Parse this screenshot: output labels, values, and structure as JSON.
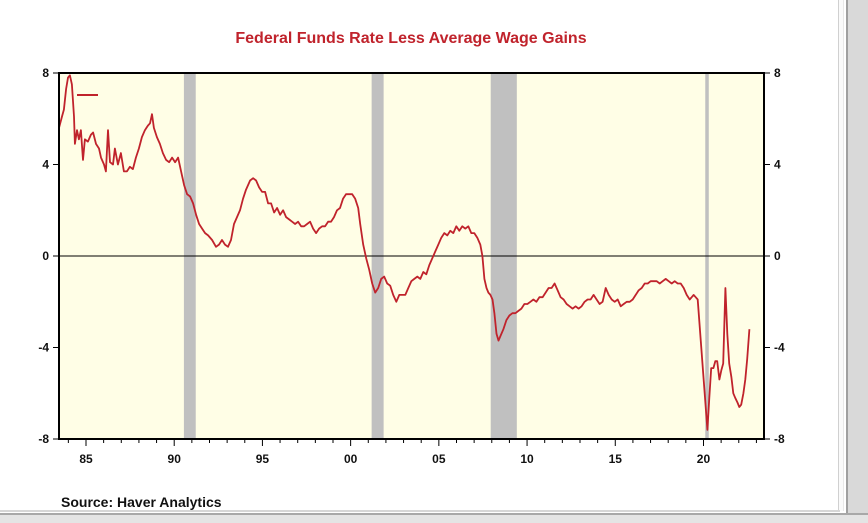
{
  "chart_data": {
    "type": "line",
    "title": "Federal Funds Rate Less Average Wage Gains",
    "source": "Source:  Haver Analytics",
    "xlabel": "",
    "ylabel": "",
    "xlim": [
      1983.47,
      2023.43
    ],
    "ylim": [
      -8,
      8
    ],
    "x_ticks": [
      1985,
      1990,
      1995,
      2000,
      2005,
      2010,
      2015,
      2020
    ],
    "x_tick_labels": [
      "85",
      "90",
      "95",
      "00",
      "05",
      "10",
      "15",
      "20"
    ],
    "y_ticks": [
      8,
      4,
      0,
      -4,
      -8
    ],
    "y_tick_labels": [
      "8",
      "4",
      "0",
      "-4",
      "-8"
    ],
    "grid": false,
    "zero_line": true,
    "legend": {
      "placement": "top-left",
      "entries": [
        ""
      ]
    },
    "colors": {
      "line": "#c0232c",
      "plot_bg": "#fffee6",
      "recession": "#c0c0c0",
      "title": "#c0232c"
    },
    "recessions": [
      [
        1990.55,
        1991.22
      ],
      [
        2001.19,
        2001.87
      ],
      [
        2007.94,
        2009.42
      ],
      [
        2020.1,
        2020.3
      ]
    ],
    "series": [
      {
        "name": "Federal Funds Rate Less Average Wage Gains",
        "points": [
          [
            1983.47,
            5.6
          ],
          [
            1983.64,
            6.1
          ],
          [
            1983.75,
            6.4
          ],
          [
            1983.87,
            7.3
          ],
          [
            1983.98,
            7.8
          ],
          [
            1984.09,
            7.9
          ],
          [
            1984.2,
            7.5
          ],
          [
            1984.32,
            6.1
          ],
          [
            1984.37,
            4.9
          ],
          [
            1984.49,
            5.5
          ],
          [
            1984.6,
            5.1
          ],
          [
            1984.71,
            5.5
          ],
          [
            1984.83,
            4.2
          ],
          [
            1984.94,
            5.1
          ],
          [
            1985.11,
            5.0
          ],
          [
            1985.28,
            5.3
          ],
          [
            1985.4,
            5.4
          ],
          [
            1985.57,
            4.9
          ],
          [
            1985.74,
            4.7
          ],
          [
            1985.85,
            4.3
          ],
          [
            1986.02,
            4.0
          ],
          [
            1986.13,
            3.7
          ],
          [
            1986.25,
            5.5
          ],
          [
            1986.36,
            4.1
          ],
          [
            1986.53,
            4.0
          ],
          [
            1986.64,
            4.7
          ],
          [
            1986.81,
            4.0
          ],
          [
            1986.98,
            4.5
          ],
          [
            1987.15,
            3.7
          ],
          [
            1987.32,
            3.7
          ],
          [
            1987.49,
            3.9
          ],
          [
            1987.66,
            3.8
          ],
          [
            1987.83,
            4.3
          ],
          [
            1988.0,
            4.7
          ],
          [
            1988.17,
            5.2
          ],
          [
            1988.34,
            5.5
          ],
          [
            1988.51,
            5.7
          ],
          [
            1988.63,
            5.8
          ],
          [
            1988.74,
            6.2
          ],
          [
            1988.85,
            5.6
          ],
          [
            1989.02,
            5.2
          ],
          [
            1989.19,
            4.9
          ],
          [
            1989.36,
            4.5
          ],
          [
            1989.54,
            4.2
          ],
          [
            1989.71,
            4.1
          ],
          [
            1989.88,
            4.3
          ],
          [
            1990.05,
            4.1
          ],
          [
            1990.22,
            4.3
          ],
          [
            1990.39,
            3.7
          ],
          [
            1990.56,
            3.1
          ],
          [
            1990.73,
            2.7
          ],
          [
            1990.9,
            2.6
          ],
          [
            1991.07,
            2.3
          ],
          [
            1991.24,
            1.8
          ],
          [
            1991.41,
            1.4
          ],
          [
            1991.58,
            1.2
          ],
          [
            1991.75,
            1.0
          ],
          [
            1991.92,
            0.9
          ],
          [
            1992.15,
            0.7
          ],
          [
            1992.37,
            0.4
          ],
          [
            1992.54,
            0.5
          ],
          [
            1992.71,
            0.7
          ],
          [
            1992.88,
            0.5
          ],
          [
            1993.05,
            0.4
          ],
          [
            1993.22,
            0.7
          ],
          [
            1993.39,
            1.4
          ],
          [
            1993.56,
            1.7
          ],
          [
            1993.73,
            2.0
          ],
          [
            1993.9,
            2.5
          ],
          [
            1994.07,
            2.9
          ],
          [
            1994.3,
            3.3
          ],
          [
            1994.47,
            3.4
          ],
          [
            1994.64,
            3.3
          ],
          [
            1994.81,
            3.0
          ],
          [
            1994.98,
            2.8
          ],
          [
            1995.15,
            2.8
          ],
          [
            1995.32,
            2.3
          ],
          [
            1995.49,
            2.3
          ],
          [
            1995.66,
            1.9
          ],
          [
            1995.83,
            2.1
          ],
          [
            1996.0,
            1.8
          ],
          [
            1996.17,
            2.0
          ],
          [
            1996.34,
            1.7
          ],
          [
            1996.51,
            1.6
          ],
          [
            1996.68,
            1.5
          ],
          [
            1996.85,
            1.4
          ],
          [
            1997.02,
            1.5
          ],
          [
            1997.19,
            1.3
          ],
          [
            1997.36,
            1.3
          ],
          [
            1997.53,
            1.4
          ],
          [
            1997.7,
            1.5
          ],
          [
            1997.87,
            1.2
          ],
          [
            1998.04,
            1.0
          ],
          [
            1998.21,
            1.2
          ],
          [
            1998.38,
            1.3
          ],
          [
            1998.55,
            1.3
          ],
          [
            1998.72,
            1.5
          ],
          [
            1998.89,
            1.5
          ],
          [
            1999.06,
            1.7
          ],
          [
            1999.23,
            2.0
          ],
          [
            1999.4,
            2.1
          ],
          [
            1999.57,
            2.5
          ],
          [
            1999.74,
            2.7
          ],
          [
            1999.91,
            2.7
          ],
          [
            2000.09,
            2.7
          ],
          [
            2000.26,
            2.5
          ],
          [
            2000.43,
            2.1
          ],
          [
            2000.54,
            1.4
          ],
          [
            2000.71,
            0.5
          ],
          [
            2000.88,
            -0.1
          ],
          [
            2001.05,
            -0.6
          ],
          [
            2001.22,
            -1.2
          ],
          [
            2001.39,
            -1.6
          ],
          [
            2001.56,
            -1.4
          ],
          [
            2001.73,
            -1.0
          ],
          [
            2001.9,
            -0.9
          ],
          [
            2002.07,
            -1.2
          ],
          [
            2002.24,
            -1.3
          ],
          [
            2002.41,
            -1.7
          ],
          [
            2002.59,
            -2.0
          ],
          [
            2002.76,
            -1.7
          ],
          [
            2002.93,
            -1.7
          ],
          [
            2003.1,
            -1.7
          ],
          [
            2003.27,
            -1.4
          ],
          [
            2003.44,
            -1.1
          ],
          [
            2003.61,
            -1.0
          ],
          [
            2003.78,
            -0.9
          ],
          [
            2003.95,
            -1.0
          ],
          [
            2004.12,
            -0.7
          ],
          [
            2004.29,
            -0.8
          ],
          [
            2004.46,
            -0.4
          ],
          [
            2004.63,
            -0.1
          ],
          [
            2004.8,
            0.2
          ],
          [
            2004.97,
            0.5
          ],
          [
            2005.14,
            0.8
          ],
          [
            2005.31,
            1.0
          ],
          [
            2005.48,
            0.9
          ],
          [
            2005.65,
            1.1
          ],
          [
            2005.82,
            1.0
          ],
          [
            2005.99,
            1.3
          ],
          [
            2006.16,
            1.1
          ],
          [
            2006.33,
            1.3
          ],
          [
            2006.5,
            1.2
          ],
          [
            2006.67,
            1.3
          ],
          [
            2006.84,
            1.0
          ],
          [
            2007.01,
            1.0
          ],
          [
            2007.18,
            0.8
          ],
          [
            2007.35,
            0.5
          ],
          [
            2007.47,
            0.0
          ],
          [
            2007.58,
            -1.0
          ],
          [
            2007.7,
            -1.4
          ],
          [
            2007.81,
            -1.6
          ],
          [
            2007.92,
            -1.7
          ],
          [
            2008.04,
            -1.9
          ],
          [
            2008.15,
            -2.5
          ],
          [
            2008.27,
            -3.4
          ],
          [
            2008.38,
            -3.7
          ],
          [
            2008.49,
            -3.5
          ],
          [
            2008.66,
            -3.2
          ],
          [
            2008.83,
            -2.8
          ],
          [
            2009.0,
            -2.6
          ],
          [
            2009.17,
            -2.5
          ],
          [
            2009.34,
            -2.5
          ],
          [
            2009.51,
            -2.4
          ],
          [
            2009.68,
            -2.3
          ],
          [
            2009.85,
            -2.1
          ],
          [
            2010.02,
            -2.1
          ],
          [
            2010.19,
            -2.0
          ],
          [
            2010.36,
            -1.9
          ],
          [
            2010.53,
            -2.0
          ],
          [
            2010.7,
            -1.8
          ],
          [
            2010.88,
            -1.8
          ],
          [
            2011.05,
            -1.6
          ],
          [
            2011.22,
            -1.4
          ],
          [
            2011.39,
            -1.4
          ],
          [
            2011.56,
            -1.2
          ],
          [
            2011.73,
            -1.5
          ],
          [
            2011.9,
            -1.8
          ],
          [
            2012.07,
            -1.9
          ],
          [
            2012.24,
            -2.1
          ],
          [
            2012.41,
            -2.2
          ],
          [
            2012.58,
            -2.3
          ],
          [
            2012.75,
            -2.2
          ],
          [
            2012.92,
            -2.3
          ],
          [
            2013.09,
            -2.2
          ],
          [
            2013.26,
            -2.0
          ],
          [
            2013.43,
            -1.9
          ],
          [
            2013.6,
            -1.9
          ],
          [
            2013.77,
            -1.7
          ],
          [
            2013.94,
            -1.9
          ],
          [
            2014.11,
            -2.1
          ],
          [
            2014.28,
            -2.0
          ],
          [
            2014.46,
            -1.4
          ],
          [
            2014.63,
            -1.7
          ],
          [
            2014.8,
            -1.9
          ],
          [
            2014.97,
            -2.0
          ],
          [
            2015.14,
            -1.9
          ],
          [
            2015.31,
            -2.2
          ],
          [
            2015.48,
            -2.1
          ],
          [
            2015.65,
            -2.0
          ],
          [
            2015.82,
            -2.0
          ],
          [
            2015.99,
            -1.9
          ],
          [
            2016.16,
            -1.7
          ],
          [
            2016.33,
            -1.5
          ],
          [
            2016.5,
            -1.4
          ],
          [
            2016.67,
            -1.2
          ],
          [
            2016.84,
            -1.2
          ],
          [
            2017.01,
            -1.1
          ],
          [
            2017.18,
            -1.1
          ],
          [
            2017.35,
            -1.1
          ],
          [
            2017.52,
            -1.2
          ],
          [
            2017.69,
            -1.1
          ],
          [
            2017.86,
            -1.0
          ],
          [
            2018.03,
            -1.1
          ],
          [
            2018.2,
            -1.2
          ],
          [
            2018.37,
            -1.1
          ],
          [
            2018.54,
            -1.2
          ],
          [
            2018.71,
            -1.2
          ],
          [
            2018.88,
            -1.4
          ],
          [
            2019.05,
            -1.7
          ],
          [
            2019.22,
            -1.9
          ],
          [
            2019.33,
            -1.8
          ],
          [
            2019.44,
            -1.7
          ],
          [
            2019.56,
            -1.8
          ],
          [
            2019.67,
            -1.9
          ],
          [
            2020.22,
            -7.6
          ],
          [
            2020.33,
            -6.2
          ],
          [
            2020.44,
            -4.9
          ],
          [
            2020.56,
            -4.9
          ],
          [
            2020.67,
            -4.6
          ],
          [
            2020.78,
            -4.6
          ],
          [
            2020.9,
            -5.4
          ],
          [
            2021.01,
            -5.0
          ],
          [
            2021.12,
            -4.7
          ],
          [
            2021.24,
            -1.4
          ],
          [
            2021.35,
            -3.4
          ],
          [
            2021.46,
            -4.7
          ],
          [
            2021.58,
            -5.3
          ],
          [
            2021.69,
            -6.0
          ],
          [
            2021.8,
            -6.2
          ],
          [
            2021.92,
            -6.4
          ],
          [
            2022.03,
            -6.6
          ],
          [
            2022.14,
            -6.5
          ],
          [
            2022.26,
            -6.0
          ],
          [
            2022.37,
            -5.4
          ],
          [
            2022.48,
            -4.5
          ],
          [
            2022.6,
            -3.2
          ]
        ]
      }
    ]
  }
}
